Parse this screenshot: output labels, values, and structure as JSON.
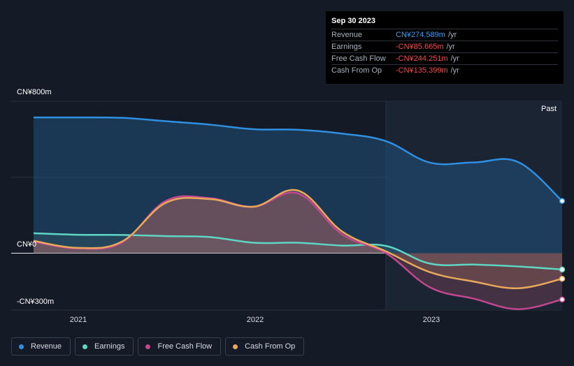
{
  "tooltip": {
    "date": "Sep 30 2023",
    "rows": [
      {
        "label": "Revenue",
        "value": "CN¥274.589m",
        "unit": "/yr",
        "color": "#3a9df0"
      },
      {
        "label": "Earnings",
        "value": "-CN¥85.665m",
        "unit": "/yr",
        "color": "#e84d4d"
      },
      {
        "label": "Free Cash Flow",
        "value": "-CN¥244.251m",
        "unit": "/yr",
        "color": "#e84d4d"
      },
      {
        "label": "Cash From Op",
        "value": "-CN¥135.399m",
        "unit": "/yr",
        "color": "#e84d4d"
      }
    ]
  },
  "past_label": "Past",
  "colors": {
    "revenue": "#2f8fe0",
    "earnings": "#5fd6c4",
    "fcf": "#c2478f",
    "cfo": "#e8a95a",
    "background": "#151b26"
  },
  "chart_data": {
    "type": "area",
    "ylim": [
      -300,
      800
    ],
    "y_ticks": [
      {
        "value": 800,
        "label": "CN¥800m"
      },
      {
        "value": 0,
        "label": "CN¥0"
      },
      {
        "value": -300,
        "label": "-CN¥300m"
      }
    ],
    "x_ticks": [
      {
        "value": 2021.0,
        "label": "2021"
      },
      {
        "value": 2022.0,
        "label": "2022"
      },
      {
        "value": 2023.0,
        "label": "2023"
      }
    ],
    "xlim": [
      2020.75,
      2023.75
    ],
    "past_start": 2022.75,
    "series": [
      {
        "key": "revenue",
        "name": "Revenue",
        "color": "#2f8fe0",
        "points": [
          [
            2020.75,
            715
          ],
          [
            2021.0,
            715
          ],
          [
            2021.25,
            713
          ],
          [
            2021.5,
            695
          ],
          [
            2021.75,
            677
          ],
          [
            2022.0,
            653
          ],
          [
            2022.25,
            650
          ],
          [
            2022.5,
            630
          ],
          [
            2022.75,
            590
          ],
          [
            2023.0,
            477
          ],
          [
            2023.25,
            478
          ],
          [
            2023.5,
            480
          ],
          [
            2023.75,
            275
          ]
        ]
      },
      {
        "key": "earnings",
        "name": "Earnings",
        "color": "#5fd6c4",
        "points": [
          [
            2020.75,
            105
          ],
          [
            2021.0,
            97
          ],
          [
            2021.25,
            96
          ],
          [
            2021.5,
            90
          ],
          [
            2021.75,
            85
          ],
          [
            2022.0,
            55
          ],
          [
            2022.25,
            55
          ],
          [
            2022.5,
            40
          ],
          [
            2022.75,
            38
          ],
          [
            2023.0,
            -55
          ],
          [
            2023.25,
            -60
          ],
          [
            2023.5,
            -70
          ],
          [
            2023.75,
            -86
          ]
        ]
      },
      {
        "key": "fcf",
        "name": "Free Cash Flow",
        "color": "#c2478f",
        "points": [
          [
            2020.75,
            60
          ],
          [
            2021.0,
            25
          ],
          [
            2021.25,
            55
          ],
          [
            2021.5,
            275
          ],
          [
            2021.75,
            290
          ],
          [
            2022.0,
            245
          ],
          [
            2022.25,
            315
          ],
          [
            2022.5,
            100
          ],
          [
            2022.75,
            0
          ],
          [
            2023.0,
            -180
          ],
          [
            2023.25,
            -240
          ],
          [
            2023.5,
            -295
          ],
          [
            2023.75,
            -244
          ]
        ]
      },
      {
        "key": "cfo",
        "name": "Cash From Op",
        "color": "#e8a95a",
        "points": [
          [
            2020.75,
            65
          ],
          [
            2021.0,
            28
          ],
          [
            2021.25,
            60
          ],
          [
            2021.5,
            265
          ],
          [
            2021.75,
            285
          ],
          [
            2022.0,
            245
          ],
          [
            2022.25,
            330
          ],
          [
            2022.5,
            115
          ],
          [
            2022.75,
            10
          ],
          [
            2023.0,
            -100
          ],
          [
            2023.25,
            -150
          ],
          [
            2023.5,
            -185
          ],
          [
            2023.75,
            -135
          ]
        ]
      }
    ]
  },
  "legend": [
    {
      "key": "revenue",
      "label": "Revenue",
      "color": "#2f8fe0"
    },
    {
      "key": "earnings",
      "label": "Earnings",
      "color": "#5fd6c4"
    },
    {
      "key": "fcf",
      "label": "Free Cash Flow",
      "color": "#c2478f"
    },
    {
      "key": "cfo",
      "label": "Cash From Op",
      "color": "#e8a95a"
    }
  ]
}
